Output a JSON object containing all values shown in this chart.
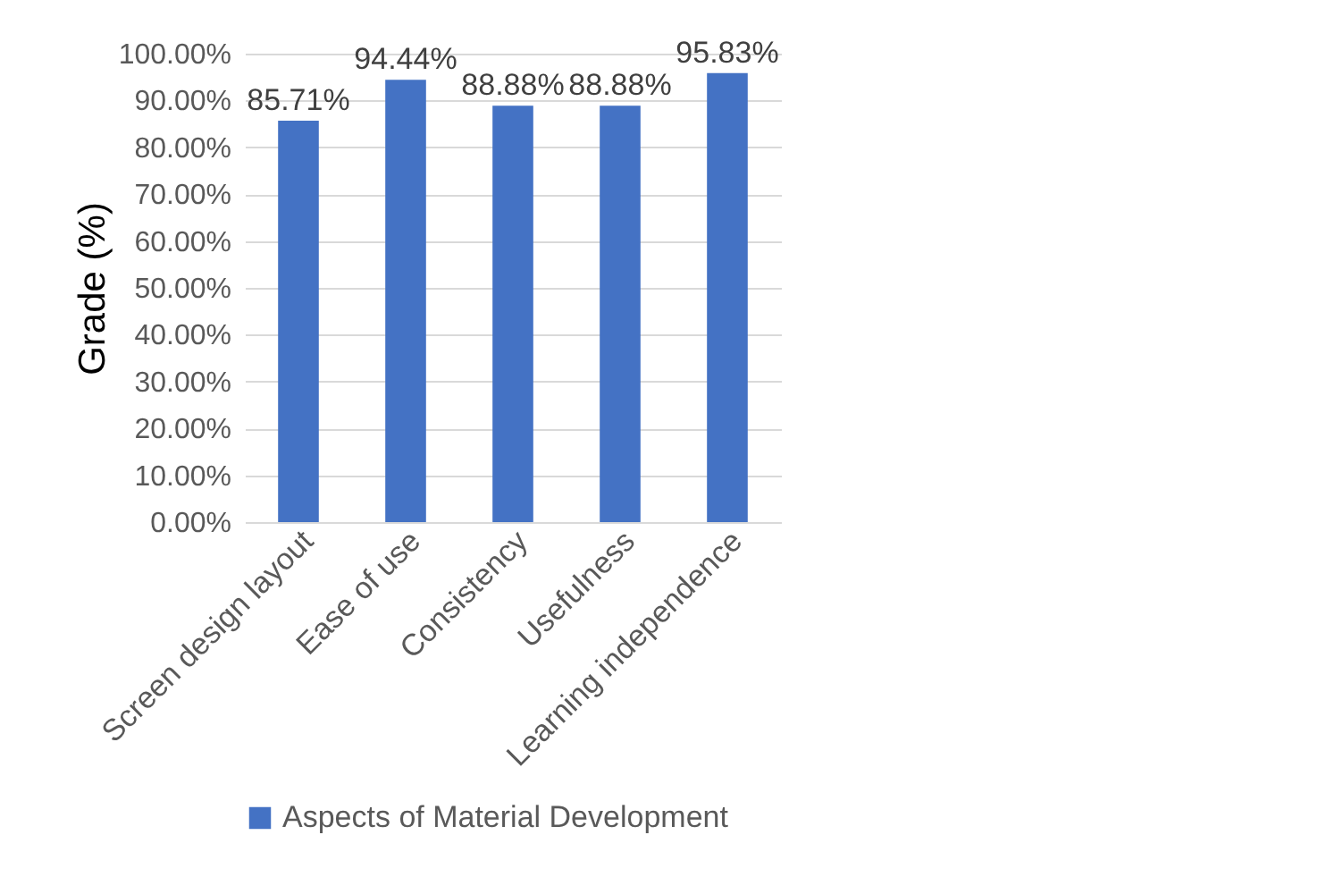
{
  "chart_data": {
    "type": "bar",
    "ylabel": "Grade  (%)",
    "categories": [
      "Screen design layout",
      "Ease of use",
      "Consistency",
      "Usefulness",
      "Learning independence"
    ],
    "series": [
      {
        "name": "Aspects of Material Development",
        "color": "#4472c4",
        "values": [
          85.71,
          94.44,
          88.88,
          88.88,
          95.83
        ],
        "value_labels": [
          "85.71%",
          "94.44%",
          "88.88%",
          "88.88%",
          "95.83%"
        ]
      }
    ],
    "ylim": [
      0,
      100
    ],
    "yticks": [
      {
        "value": 0,
        "label": "0.00%"
      },
      {
        "value": 10,
        "label": "10.00%"
      },
      {
        "value": 20,
        "label": "20.00%"
      },
      {
        "value": 30,
        "label": "30.00%"
      },
      {
        "value": 40,
        "label": "40.00%"
      },
      {
        "value": 50,
        "label": "50.00%"
      },
      {
        "value": 60,
        "label": "60.00%"
      },
      {
        "value": 70,
        "label": "70.00%"
      },
      {
        "value": 80,
        "label": "80.00%"
      },
      {
        "value": 90,
        "label": "90.00%"
      },
      {
        "value": 100,
        "label": "100.00%"
      }
    ],
    "grid": "y",
    "legend": "bottom"
  }
}
